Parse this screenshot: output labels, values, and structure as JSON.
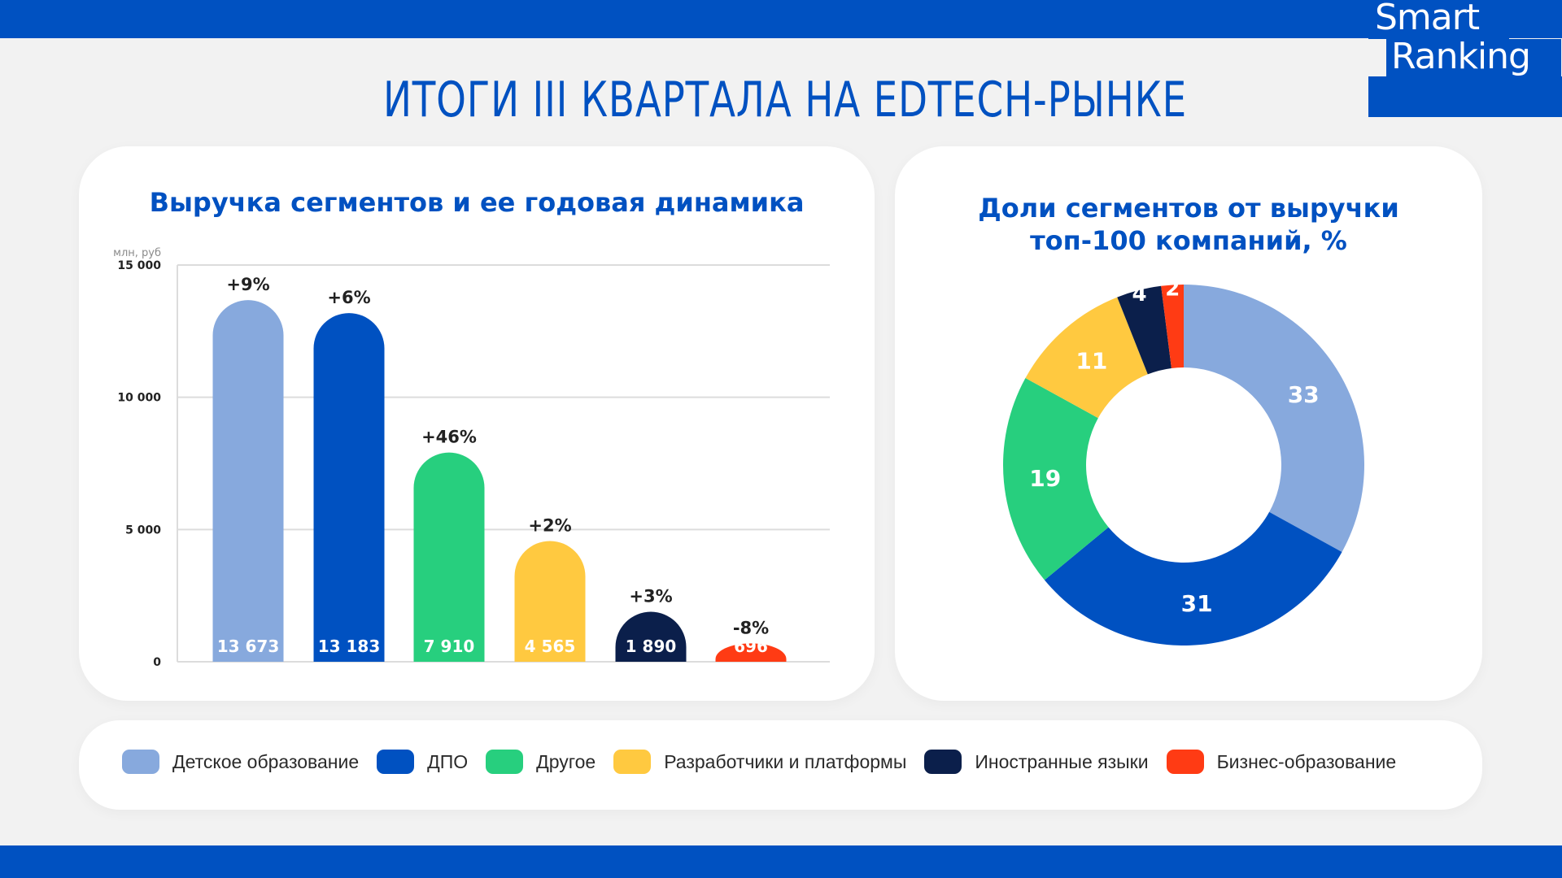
{
  "header": {
    "title": "ИТОГИ III КВАРТАЛА НА EDTECH-РЫНКЕ",
    "logo_line1": "Smart",
    "logo_line2": "Ranking"
  },
  "colors": {
    "brand": "#0051c1",
    "segments": [
      "#87a9dd",
      "#0051c1",
      "#27cf7e",
      "#ffc940",
      "#0b1f4b",
      "#ff3b14"
    ]
  },
  "legend": [
    {
      "label": "Детское образование",
      "color": "#87a9dd"
    },
    {
      "label": "ДПО",
      "color": "#0051c1"
    },
    {
      "label": "Другое",
      "color": "#27cf7e"
    },
    {
      "label": "Разработчики и платформы",
      "color": "#ffc940"
    },
    {
      "label": "Иностранные языки",
      "color": "#0b1f4b"
    },
    {
      "label": "Бизнес-образование",
      "color": "#ff3b14"
    }
  ],
  "chart_data": [
    {
      "type": "bar",
      "title": "Выручка сегментов и ее годовая динамика",
      "ylabel": "млн, руб",
      "xlabel": "",
      "ylim": [
        0,
        15000
      ],
      "yticks": [
        0,
        5000,
        10000,
        15000
      ],
      "ytick_labels": [
        "0",
        "5 000",
        "10 000",
        "15 000"
      ],
      "grid": true,
      "categories": [
        "Детское образование",
        "ДПО",
        "Другое",
        "Разработчики и платформы",
        "Иностранные языки",
        "Бизнес-образование"
      ],
      "values": [
        13673,
        13183,
        7910,
        4565,
        1890,
        696
      ],
      "value_labels": [
        "13 673",
        "13 183",
        "7 910",
        "4 565",
        "1 890",
        "696"
      ],
      "growth_labels": [
        "+9%",
        "+6%",
        "+46%",
        "+2%",
        "+3%",
        "-8%"
      ],
      "colors": [
        "#87a9dd",
        "#0051c1",
        "#27cf7e",
        "#ffc940",
        "#0b1f4b",
        "#ff3b14"
      ]
    },
    {
      "type": "pie",
      "title_line1": "Доли сегментов от выручки",
      "title_line2": "топ-100 компаний, %",
      "categories": [
        "Детское образование",
        "ДПО",
        "Другое",
        "Разработчики и платформы",
        "Иностранные языки",
        "Бизнес-образование"
      ],
      "values": [
        33,
        31,
        19,
        11,
        4,
        2
      ],
      "colors": [
        "#87a9dd",
        "#0051c1",
        "#27cf7e",
        "#ffc940",
        "#0b1f4b",
        "#ff3b14"
      ],
      "donut": true
    }
  ]
}
